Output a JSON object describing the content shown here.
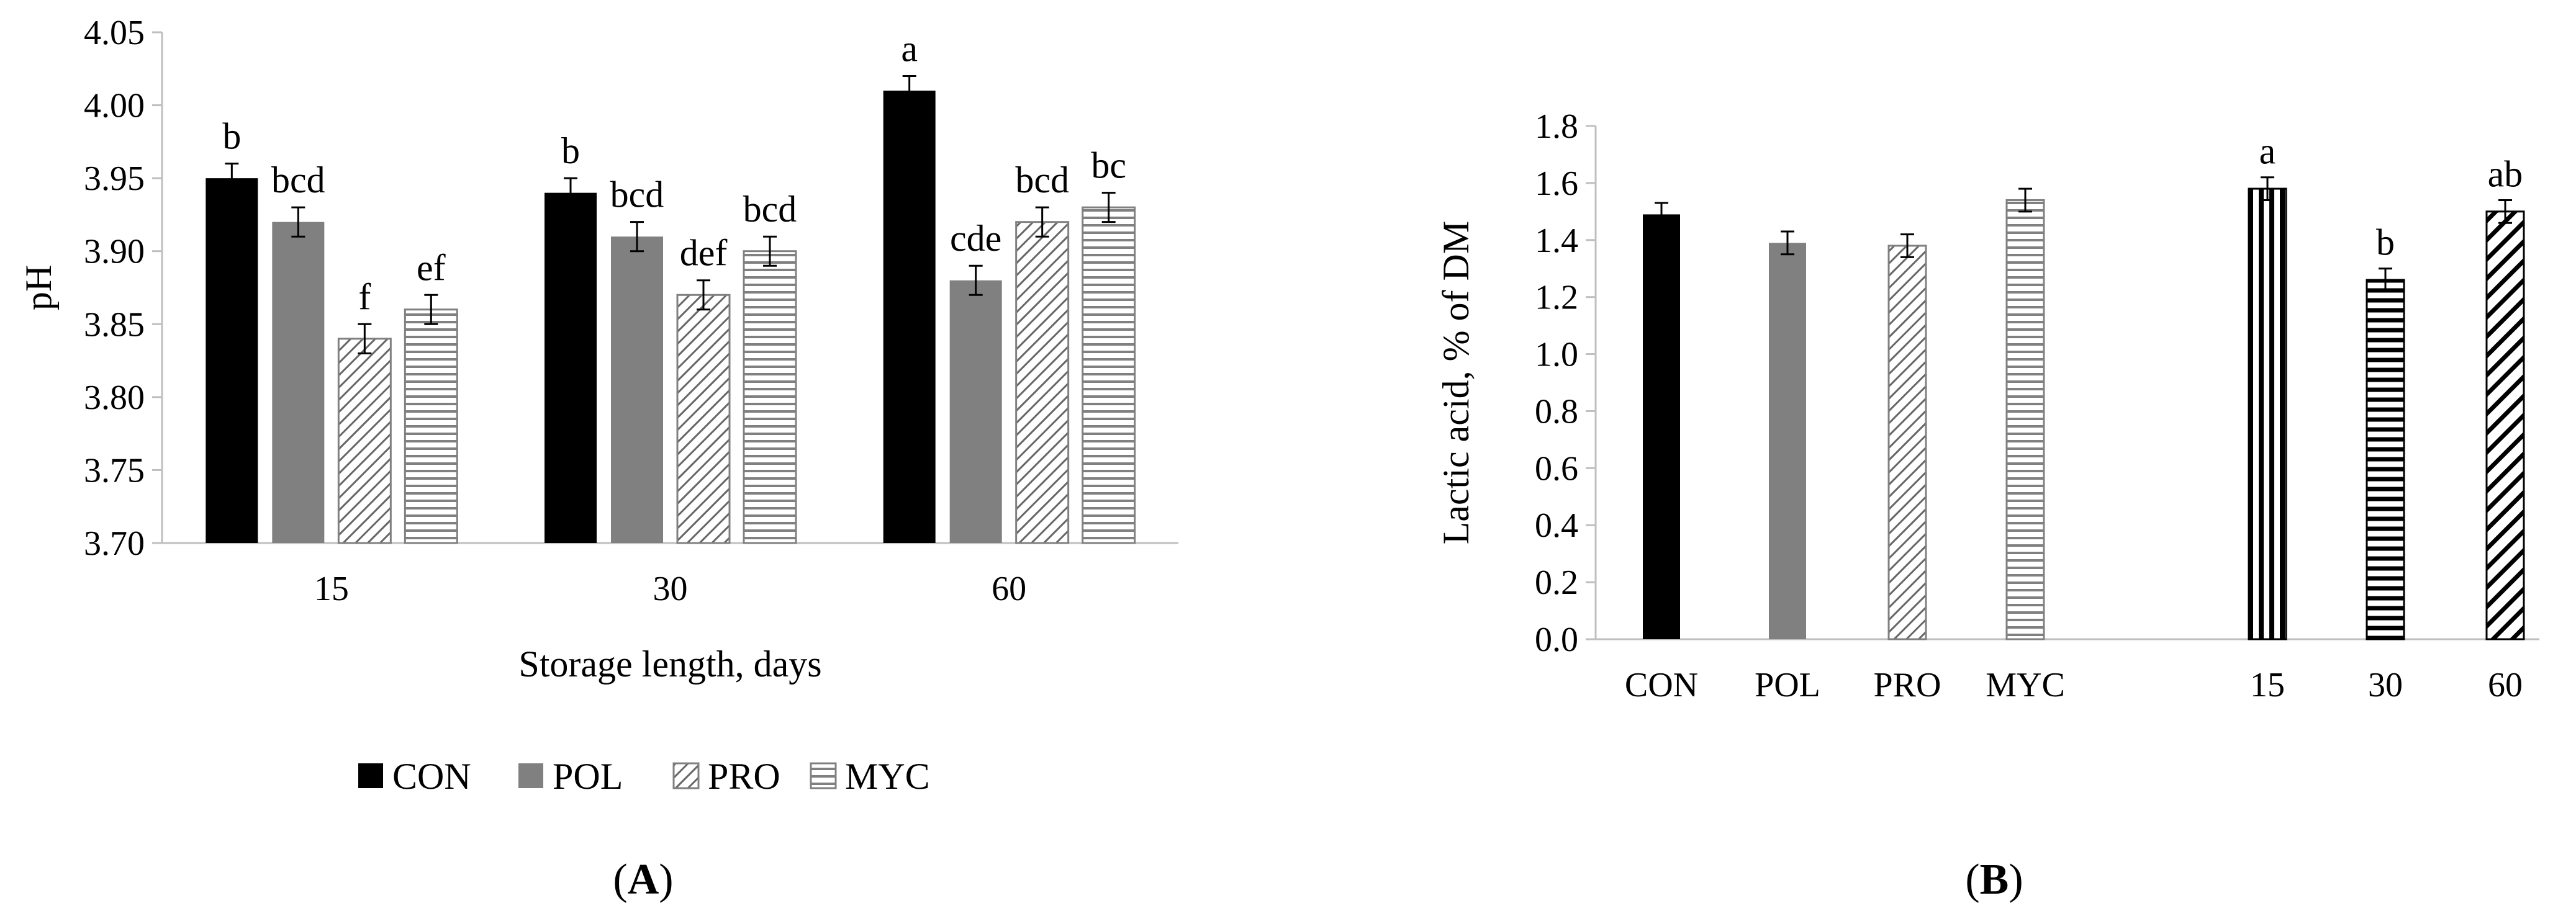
{
  "chart_data": [
    {
      "panel_label": "A",
      "type": "bar",
      "xlabel": "Storage length, days",
      "ylabel": "pH",
      "ylim": [
        3.7,
        4.05
      ],
      "yticks": [
        "3.70",
        "3.75",
        "3.80",
        "3.85",
        "3.90",
        "3.95",
        "4.00",
        "4.05"
      ],
      "categories": [
        "15",
        "30",
        "60"
      ],
      "series": [
        {
          "name": "CON",
          "pattern": "solid-black",
          "values": [
            3.95,
            3.94,
            4.01
          ],
          "errors": [
            0.01,
            0.01,
            0.01
          ],
          "letters": [
            "b",
            "b",
            "a"
          ]
        },
        {
          "name": "POL",
          "pattern": "solid-gray",
          "values": [
            3.92,
            3.91,
            3.88
          ],
          "errors": [
            0.01,
            0.01,
            0.01
          ],
          "letters": [
            "bcd",
            "bcd",
            "cde"
          ]
        },
        {
          "name": "PRO",
          "pattern": "diagonal-hatch",
          "values": [
            3.84,
            3.87,
            3.92
          ],
          "errors": [
            0.01,
            0.01,
            0.01
          ],
          "letters": [
            "f",
            "def",
            "bcd"
          ]
        },
        {
          "name": "MYC",
          "pattern": "horizontal-lines",
          "values": [
            3.86,
            3.9,
            3.93
          ],
          "errors": [
            0.01,
            0.01,
            0.01
          ],
          "letters": [
            "ef",
            "bcd",
            "bc"
          ]
        }
      ],
      "legend": [
        "CON",
        "POL",
        "PRO",
        "MYC"
      ],
      "legend_position": "bottom"
    },
    {
      "panel_label": "B",
      "type": "bar",
      "xlabel": "",
      "ylabel": "Lactic acid, % of DM",
      "ylim": [
        0.0,
        1.8
      ],
      "yticks": [
        "0.0",
        "0.2",
        "0.4",
        "0.6",
        "0.8",
        "1.0",
        "1.2",
        "1.4",
        "1.6",
        "1.8"
      ],
      "bars": [
        {
          "label": "CON",
          "value": 1.49,
          "error": 0.04,
          "letter": "",
          "pattern": "solid-black"
        },
        {
          "label": "POL",
          "value": 1.39,
          "error": 0.04,
          "letter": "",
          "pattern": "solid-gray"
        },
        {
          "label": "PRO",
          "value": 1.38,
          "error": 0.04,
          "letter": "",
          "pattern": "diagonal-hatch"
        },
        {
          "label": "MYC",
          "value": 1.54,
          "error": 0.04,
          "letter": "",
          "pattern": "horizontal-lines"
        },
        {
          "label": "15",
          "value": 1.58,
          "error": 0.04,
          "letter": "a",
          "pattern": "vertical-stripes"
        },
        {
          "label": "30",
          "value": 1.26,
          "error": 0.04,
          "letter": "b",
          "pattern": "bold-horizontal"
        },
        {
          "label": "60",
          "value": 1.5,
          "error": 0.04,
          "letter": "ab",
          "pattern": "bold-diagonal"
        }
      ]
    }
  ],
  "colors": {
    "con": "#000000",
    "pol": "#808080",
    "axis": "#bfbfbf"
  }
}
